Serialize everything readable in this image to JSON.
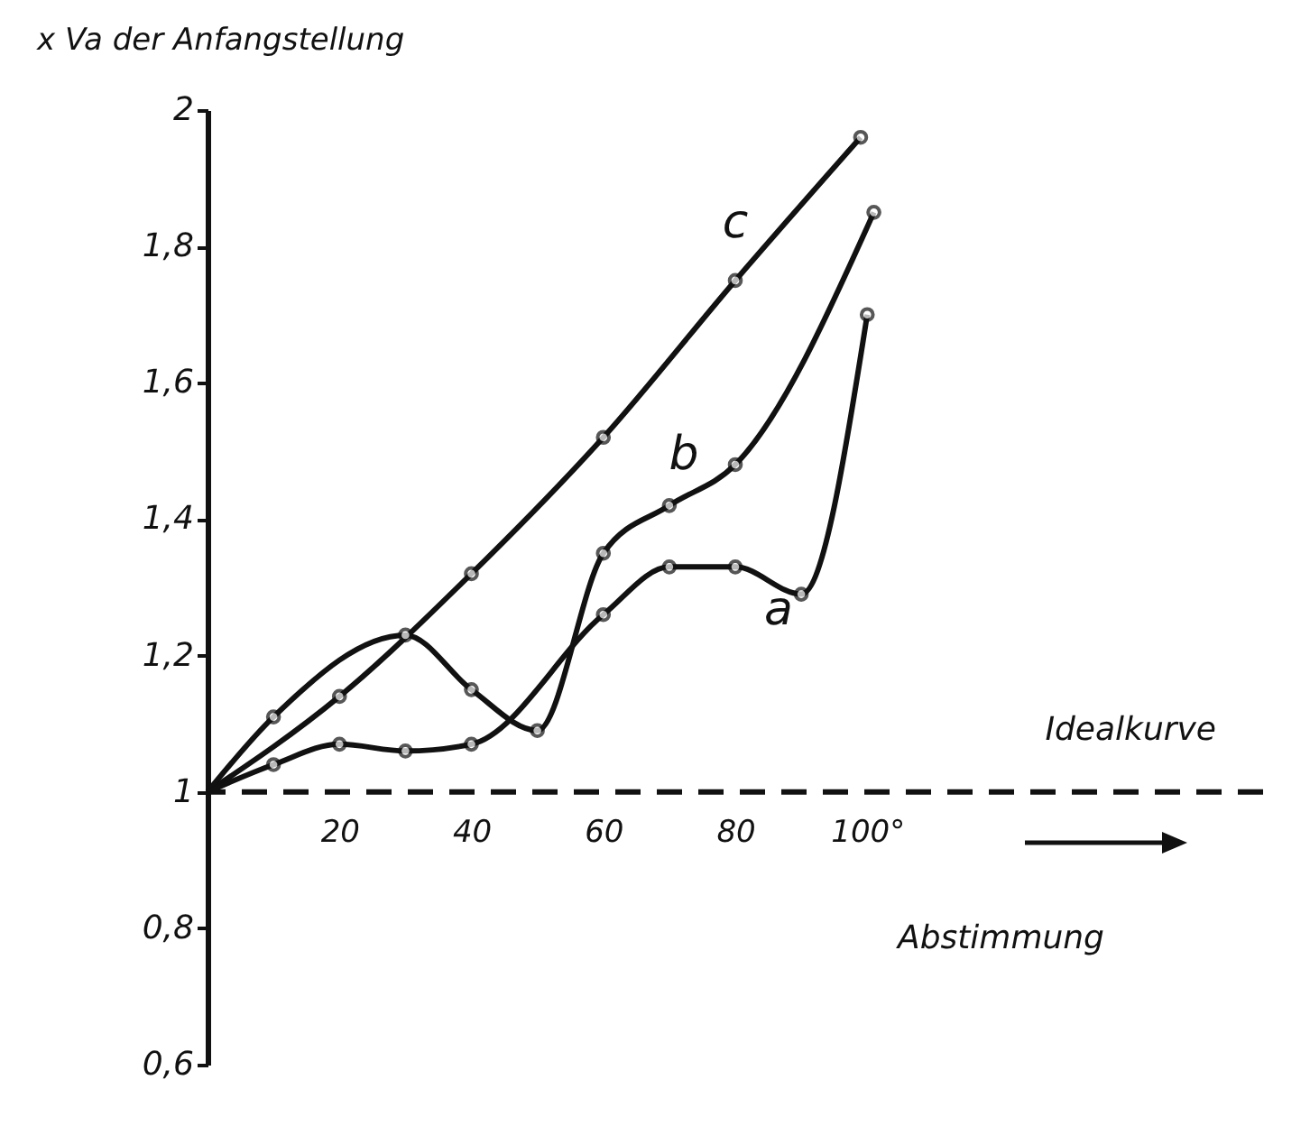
{
  "chart_data": {
    "type": "line",
    "ylabel": "x Va der Anfangstellung",
    "xlabel": "Abstimmung",
    "series": [
      {
        "name": "c",
        "color": "#111111",
        "x": [
          0,
          20,
          40,
          60,
          80,
          99
        ],
        "values": [
          1,
          1.14,
          1.32,
          1.52,
          1.75,
          1.96
        ]
      },
      {
        "name": "b",
        "color": "#111111",
        "x": [
          0,
          10,
          30,
          40,
          50,
          60,
          70,
          80,
          101
        ],
        "values": [
          1,
          1.11,
          1.23,
          1.15,
          1.09,
          1.35,
          1.42,
          1.48,
          1.85
        ]
      },
      {
        "name": "a",
        "color": "#111111",
        "x": [
          0,
          10,
          20,
          30,
          40,
          60,
          70,
          80,
          90,
          100
        ],
        "values": [
          1,
          1.04,
          1.07,
          1.06,
          1.07,
          1.26,
          1.33,
          1.33,
          1.29,
          1.7
        ]
      }
    ],
    "xlim": [
      0,
      160
    ],
    "xticks": [
      20,
      40,
      60,
      80,
      {
        "value": 100,
        "label": "100°"
      }
    ],
    "ylim": [
      0.6,
      2
    ],
    "yticks": [
      {
        "value": 0.6,
        "label": "0,6"
      },
      {
        "value": 0.8,
        "label": "0,8"
      },
      1,
      {
        "value": 1.2,
        "label": "1,2"
      },
      {
        "value": 1.4,
        "label": "1,4"
      },
      {
        "value": 1.6,
        "label": "1,6"
      },
      {
        "value": 1.8,
        "label": "1,8"
      },
      2
    ],
    "ref_lines": [
      {
        "axis": "y",
        "value": 1,
        "label": "Idealkurve",
        "line_style": "dashed",
        "color": "#111111"
      }
    ],
    "marker": "circle",
    "line_style": "solid",
    "grid": false,
    "legend": false
  }
}
